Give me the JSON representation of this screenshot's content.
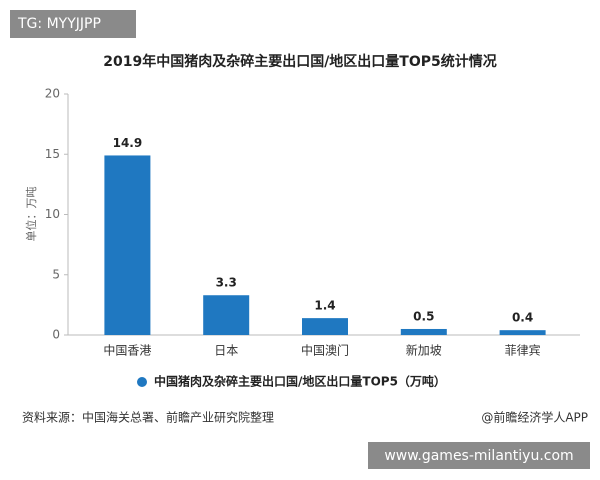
{
  "tag": "TG: MYYJJPP",
  "chart_data": {
    "type": "bar",
    "title": "2019年中国猪肉及杂碎主要出口国/地区出口量TOP5统计情况",
    "y_label": "单位：万吨",
    "categories": [
      "中国香港",
      "日本",
      "中国澳门",
      "新加坡",
      "菲律宾"
    ],
    "series": [
      {
        "name": "中国猪肉及杂碎主要出口国/地区出口量TOP5（万吨）",
        "color": "#1f78c1",
        "values": [
          14.9,
          3.3,
          1.4,
          0.5,
          0.4
        ]
      }
    ],
    "ylim": [
      0,
      20
    ],
    "yticks": [
      0,
      5,
      10,
      15,
      20
    ],
    "grid": false
  },
  "source": "资料来源：中国海关总署、前瞻产业研究院整理",
  "credit": "@前瞻经济学人APP",
  "watermark": "www.games-milantiyu.com"
}
